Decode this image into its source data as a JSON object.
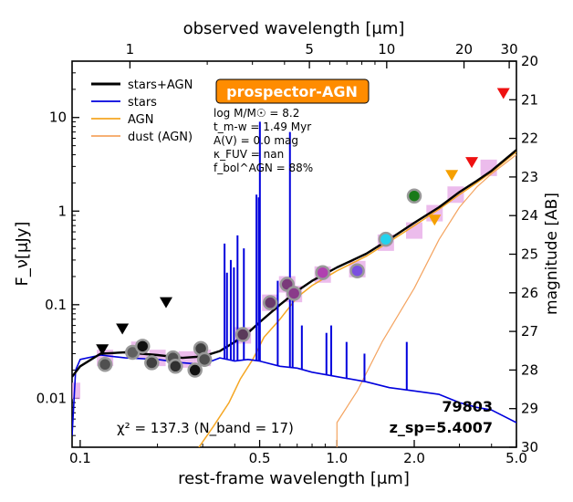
{
  "chart_data": {
    "type": "line",
    "title": "",
    "xlabel": "rest-frame wavelength [μm]",
    "xlabel_top": "observed wavelength [μm]",
    "ylabel": "F_ν[μJy]",
    "ylabel_right": "magnitude [AB]",
    "xscale": "log",
    "yscale": "log",
    "xlim": [
      0.093,
      5.0
    ],
    "ylim": [
      0.003,
      40
    ],
    "right_ylim_mag": [
      20,
      30
    ],
    "x_ticks": [
      {
        "v": 0.1,
        "label": "0.1"
      },
      {
        "v": 0.5,
        "label": "0.5"
      },
      {
        "v": 1.0,
        "label": "1.0"
      },
      {
        "v": 2.0,
        "label": "2.0"
      },
      {
        "v": 5.0,
        "label": "5.0"
      }
    ],
    "top_ticks": [
      {
        "v": 1,
        "label": "1"
      },
      {
        "v": 5,
        "label": "5"
      },
      {
        "v": 10,
        "label": "10"
      },
      {
        "v": 20,
        "label": "20"
      },
      {
        "v": 30,
        "label": "30"
      }
    ],
    "y_ticks": [
      {
        "v": 0.01,
        "label": "0.01"
      },
      {
        "v": 0.1,
        "label": "0.1"
      },
      {
        "v": 1,
        "label": "1"
      },
      {
        "v": 10,
        "label": "10"
      }
    ],
    "mag_ticks": [
      "20",
      "21",
      "22",
      "23",
      "24",
      "25",
      "26",
      "27",
      "28",
      "29",
      "30"
    ],
    "badge": "prospector-AGN",
    "legend_position": "top-left",
    "legend": [
      {
        "label": "stars+AGN",
        "color": "#000000"
      },
      {
        "label": "stars",
        "color": "#0000dd"
      },
      {
        "label": "AGN",
        "color": "#f5a623"
      },
      {
        "label": "dust (AGN)",
        "color": "#f4a460"
      }
    ],
    "params": [
      "log M/M☉ = 8.2",
      "t_m-w = 1.49 Myr",
      "A(V) = 0.0 mag",
      "κ_FUV = nan",
      "f_bol^AGN = 88%"
    ],
    "chi2_text": "χ² = 137.3 (N_band = 17)",
    "object_id": "79803",
    "redshift_text": "z_sp=5.4007",
    "series": [
      {
        "name": "stars+AGN",
        "color": "#000000",
        "points": [
          [
            0.093,
            0.017
          ],
          [
            0.1,
            0.022
          ],
          [
            0.12,
            0.03
          ],
          [
            0.15,
            0.031
          ],
          [
            0.2,
            0.029
          ],
          [
            0.25,
            0.027
          ],
          [
            0.3,
            0.028
          ],
          [
            0.35,
            0.032
          ],
          [
            0.4,
            0.04
          ],
          [
            0.45,
            0.05
          ],
          [
            0.5,
            0.065
          ],
          [
            0.6,
            0.1
          ],
          [
            0.7,
            0.14
          ],
          [
            0.8,
            0.18
          ],
          [
            1.0,
            0.25
          ],
          [
            1.3,
            0.35
          ],
          [
            1.6,
            0.5
          ],
          [
            2.0,
            0.75
          ],
          [
            2.5,
            1.1
          ],
          [
            3.0,
            1.6
          ],
          [
            3.5,
            2.1
          ],
          [
            4.0,
            2.7
          ],
          [
            5.0,
            4.5
          ]
        ]
      },
      {
        "name": "stars",
        "color": "#0000dd",
        "points": [
          [
            0.093,
            0.004
          ],
          [
            0.096,
            0.02
          ],
          [
            0.1,
            0.026
          ],
          [
            0.12,
            0.029
          ],
          [
            0.15,
            0.027
          ],
          [
            0.2,
            0.026
          ],
          [
            0.25,
            0.024
          ],
          [
            0.3,
            0.023
          ],
          [
            0.35,
            0.027
          ],
          [
            0.4,
            0.025
          ],
          [
            0.45,
            0.026
          ],
          [
            0.5,
            0.025
          ],
          [
            0.6,
            0.022
          ],
          [
            0.7,
            0.021
          ],
          [
            0.8,
            0.019
          ],
          [
            1.0,
            0.017
          ],
          [
            1.3,
            0.015
          ],
          [
            1.6,
            0.013
          ],
          [
            2.0,
            0.012
          ],
          [
            2.5,
            0.011
          ],
          [
            3.0,
            0.009
          ],
          [
            3.5,
            0.008
          ],
          [
            4.0,
            0.0075
          ],
          [
            5.0,
            0.0055
          ]
        ]
      },
      {
        "name": "AGN",
        "color": "#f5a623",
        "points": [
          [
            0.29,
            0.003
          ],
          [
            0.33,
            0.005
          ],
          [
            0.38,
            0.009
          ],
          [
            0.42,
            0.016
          ],
          [
            0.47,
            0.026
          ],
          [
            0.52,
            0.045
          ],
          [
            0.6,
            0.07
          ],
          [
            0.7,
            0.12
          ],
          [
            0.8,
            0.16
          ],
          [
            1.0,
            0.23
          ],
          [
            1.3,
            0.33
          ],
          [
            1.6,
            0.47
          ],
          [
            2.0,
            0.7
          ],
          [
            2.5,
            1.05
          ],
          [
            3.0,
            1.5
          ],
          [
            3.5,
            2.0
          ],
          [
            4.0,
            2.6
          ],
          [
            5.0,
            4.3
          ]
        ]
      },
      {
        "name": "dust (AGN)",
        "color": "#f4a460",
        "points": [
          [
            1.0,
            0.003
          ],
          [
            1.0,
            0.0055
          ],
          [
            1.2,
            0.012
          ],
          [
            1.5,
            0.04
          ],
          [
            2.0,
            0.15
          ],
          [
            2.5,
            0.5
          ],
          [
            3.0,
            1.1
          ],
          [
            3.5,
            1.8
          ],
          [
            4.0,
            2.5
          ],
          [
            5.0,
            4.0
          ]
        ]
      }
    ],
    "emission_lines": [
      {
        "x": 0.365,
        "y": 0.45
      },
      {
        "x": 0.373,
        "y": 0.22
      },
      {
        "x": 0.386,
        "y": 0.3
      },
      {
        "x": 0.397,
        "y": 0.25
      },
      {
        "x": 0.41,
        "y": 0.55
      },
      {
        "x": 0.434,
        "y": 0.4
      },
      {
        "x": 0.486,
        "y": 1.5
      },
      {
        "x": 0.496,
        "y": 1.4
      },
      {
        "x": 0.501,
        "y": 9.0
      },
      {
        "x": 0.588,
        "y": 0.18
      },
      {
        "x": 0.656,
        "y": 7.0
      },
      {
        "x": 0.672,
        "y": 0.16
      },
      {
        "x": 0.73,
        "y": 0.06
      },
      {
        "x": 0.91,
        "y": 0.05
      },
      {
        "x": 0.95,
        "y": 0.06
      },
      {
        "x": 1.09,
        "y": 0.04
      },
      {
        "x": 1.28,
        "y": 0.03
      },
      {
        "x": 1.87,
        "y": 0.04
      }
    ],
    "model_photometry": [
      {
        "x": 0.093,
        "y": 0.012
      },
      {
        "x": 0.125,
        "y": 0.027
      },
      {
        "x": 0.17,
        "y": 0.033
      },
      {
        "x": 0.2,
        "y": 0.027
      },
      {
        "x": 0.26,
        "y": 0.026
      },
      {
        "x": 0.3,
        "y": 0.027
      },
      {
        "x": 0.43,
        "y": 0.047
      },
      {
        "x": 0.55,
        "y": 0.105
      },
      {
        "x": 0.64,
        "y": 0.165
      },
      {
        "x": 0.68,
        "y": 0.13
      },
      {
        "x": 0.88,
        "y": 0.21
      },
      {
        "x": 1.2,
        "y": 0.24
      },
      {
        "x": 1.55,
        "y": 0.46
      },
      {
        "x": 2.0,
        "y": 0.62
      },
      {
        "x": 2.4,
        "y": 0.95
      },
      {
        "x": 2.9,
        "y": 1.5
      },
      {
        "x": 3.9,
        "y": 2.9
      }
    ],
    "observed_photometry": [
      {
        "x": 0.125,
        "y": 0.023,
        "color": "#505050"
      },
      {
        "x": 0.16,
        "y": 0.031,
        "color": "#606060"
      },
      {
        "x": 0.175,
        "y": 0.036,
        "color": "#111111"
      },
      {
        "x": 0.19,
        "y": 0.024,
        "color": "#404040"
      },
      {
        "x": 0.23,
        "y": 0.027,
        "color": "#505050"
      },
      {
        "x": 0.235,
        "y": 0.022,
        "color": "#303030"
      },
      {
        "x": 0.28,
        "y": 0.02,
        "color": "#111111"
      },
      {
        "x": 0.295,
        "y": 0.034,
        "color": "#404040"
      },
      {
        "x": 0.305,
        "y": 0.026,
        "color": "#505050"
      },
      {
        "x": 0.43,
        "y": 0.048,
        "color": "#5a3a5a"
      },
      {
        "x": 0.55,
        "y": 0.105,
        "color": "#6a3a6a"
      },
      {
        "x": 0.64,
        "y": 0.165,
        "color": "#7a3a7a"
      },
      {
        "x": 0.68,
        "y": 0.132,
        "color": "#8a3a8a"
      },
      {
        "x": 0.88,
        "y": 0.22,
        "color": "#b040b0"
      },
      {
        "x": 1.2,
        "y": 0.23,
        "color": "#7b4fe0"
      },
      {
        "x": 1.55,
        "y": 0.5,
        "color": "#22d3ee"
      },
      {
        "x": 2.0,
        "y": 1.45,
        "color": "#1a7a1a"
      }
    ],
    "upper_limits": [
      {
        "x": 0.122,
        "y": 0.033,
        "color": "#000000"
      },
      {
        "x": 0.146,
        "y": 0.055,
        "color": "#000000"
      },
      {
        "x": 0.216,
        "y": 0.105,
        "color": "#000000"
      },
      {
        "x": 2.4,
        "y": 0.8,
        "color": "#f5a000"
      },
      {
        "x": 2.8,
        "y": 2.4,
        "color": "#f5a000"
      },
      {
        "x": 3.35,
        "y": 3.3,
        "color": "#ee1111"
      },
      {
        "x": 4.45,
        "y": 18.0,
        "color": "#ee1111"
      }
    ]
  }
}
